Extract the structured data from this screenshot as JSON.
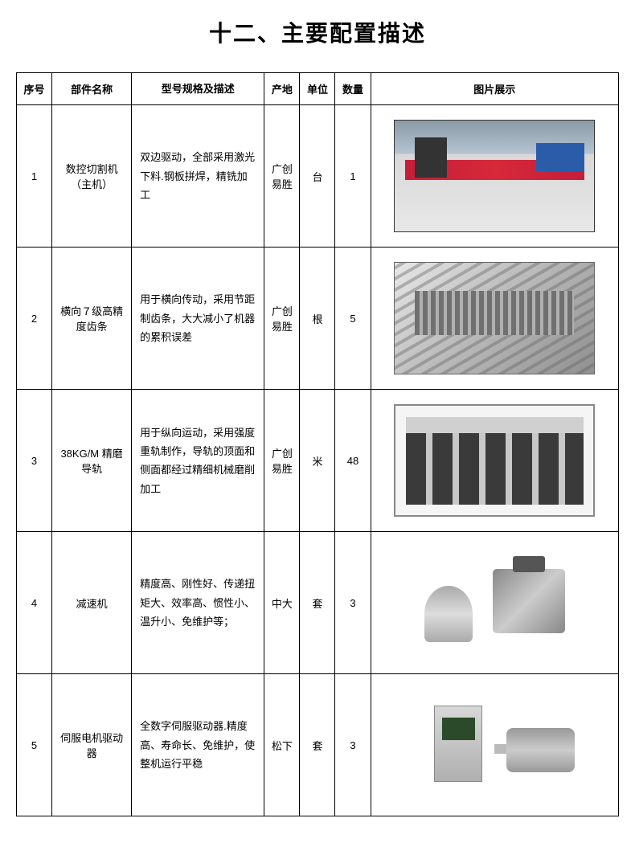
{
  "title": "十二、主要配置描述",
  "columns": {
    "num": "序号",
    "name": "部件名称",
    "spec": "型号规格及描述",
    "origin": "产地",
    "unit": "单位",
    "qty": "数量",
    "img": "图片展示"
  },
  "rows": [
    {
      "num": "1",
      "name": "数控切割机（主机）",
      "spec": "双边驱动，全部采用激光下料.钢板拼焊，精铣加工",
      "origin": "广创易胜",
      "unit": "台",
      "qty": "1",
      "img_label": "数控切割机图片"
    },
    {
      "num": "2",
      "name": "横向７级高精度齿条",
      "spec": "用于横向传动，采用节距制齿条，大大减小了机器的累积误差",
      "origin": "广创易胜",
      "unit": "根",
      "qty": "5",
      "img_label": "齿条图片"
    },
    {
      "num": "3",
      "name": "38KG/M 精磨导轨",
      "spec": "用于纵向运动，采用强度重轨制作，导轨的顶面和侧面都经过精细机械磨削加工",
      "origin": "广创易胜",
      "unit": "米",
      "qty": "48",
      "img_label": "导轨图片"
    },
    {
      "num": "4",
      "name": "减速机",
      "spec": "精度高、刚性好、传递扭矩大、效率高、惯性小、温升小、免维护等；",
      "origin": "中大",
      "unit": "套",
      "qty": "3",
      "img_label": "减速机图片"
    },
    {
      "num": "5",
      "name": "伺服电机驱动器",
      "spec": "全数字伺服驱动器.精度高、寿命长、免维护，使整机运行平稳",
      "origin": "松下",
      "unit": "套",
      "qty": "3",
      "img_label": "伺服电机驱动器图片"
    }
  ]
}
